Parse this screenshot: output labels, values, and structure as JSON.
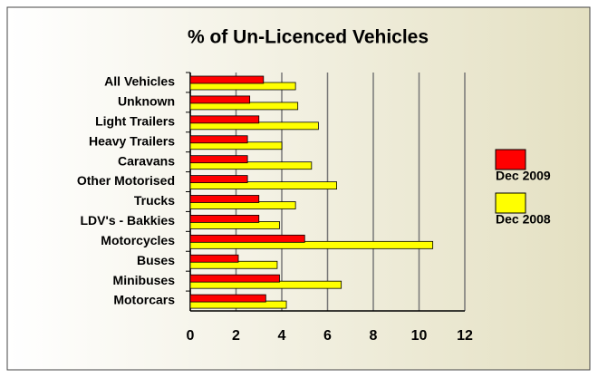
{
  "chart_data": {
    "type": "hbar",
    "title": "% of Un-Licenced Vehicles",
    "categories": [
      "All Vehicles",
      "Unknown",
      "Light Trailers",
      "Heavy Trailers",
      "Caravans",
      "Other Motorised",
      "Trucks",
      "LDV's - Bakkies",
      "Motorcycles",
      "Buses",
      "Minibuses",
      "Motorcars"
    ],
    "series": [
      {
        "name": "Dec 2009",
        "color": "#ff0000",
        "values": [
          3.2,
          2.6,
          3.0,
          2.5,
          2.5,
          2.5,
          3.0,
          3.0,
          5.0,
          2.1,
          3.9,
          3.3
        ]
      },
      {
        "name": "Dec 2008",
        "color": "#ffff00",
        "values": [
          4.6,
          4.7,
          5.6,
          4.0,
          5.3,
          6.4,
          4.6,
          3.9,
          10.6,
          3.8,
          6.6,
          4.2
        ]
      }
    ],
    "xlim": [
      0,
      12
    ],
    "xticks": [
      0,
      2,
      4,
      6,
      8,
      10,
      12
    ],
    "grid": true,
    "legend": "right"
  }
}
